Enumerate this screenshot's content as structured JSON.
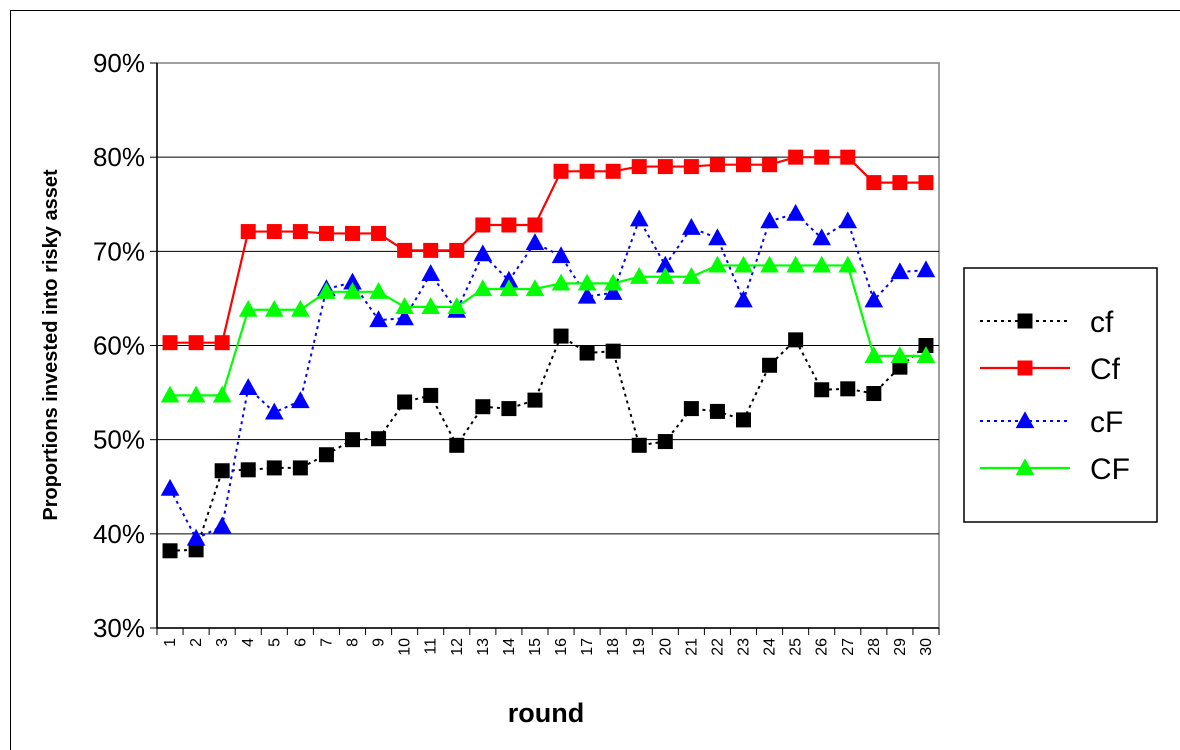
{
  "chart_data": {
    "type": "line",
    "title": "",
    "xlabel": "round",
    "ylabel": "Proportions invested into risky asset",
    "x": [
      1,
      2,
      3,
      4,
      5,
      6,
      7,
      8,
      9,
      10,
      11,
      12,
      13,
      14,
      15,
      16,
      17,
      18,
      19,
      20,
      21,
      22,
      23,
      24,
      25,
      26,
      27,
      28,
      29,
      30
    ],
    "y_ticks": [
      "30%",
      "40%",
      "50%",
      "60%",
      "70%",
      "80%",
      "90%"
    ],
    "ylim": [
      30,
      90
    ],
    "y_unit": "%",
    "grid": "horizontal",
    "legend_position": "right",
    "series": [
      {
        "name": "cf",
        "color": "#000000",
        "line_style": "dotted",
        "marker": "square",
        "values": [
          38.2,
          38.3,
          46.7,
          46.8,
          47.0,
          47.0,
          48.4,
          50.0,
          50.1,
          54.0,
          54.7,
          49.4,
          53.5,
          53.3,
          54.2,
          61.0,
          59.2,
          59.4,
          49.4,
          49.8,
          53.3,
          53.0,
          52.1,
          57.9,
          60.6,
          55.3,
          55.4,
          54.9,
          57.7,
          60.0
        ]
      },
      {
        "name": "Cf",
        "color": "#ff0000",
        "line_style": "solid",
        "marker": "square",
        "values": [
          60.3,
          60.3,
          60.3,
          72.1,
          72.1,
          72.1,
          71.9,
          71.9,
          71.9,
          70.1,
          70.1,
          70.1,
          72.8,
          72.8,
          72.8,
          78.5,
          78.5,
          78.5,
          79.0,
          79.0,
          79.0,
          79.2,
          79.2,
          79.2,
          80.0,
          80.0,
          80.0,
          77.3,
          77.3,
          77.3
        ]
      },
      {
        "name": "cF",
        "color": "#0000ff",
        "line_style": "dotted",
        "marker": "triangle",
        "values": [
          44.8,
          39.5,
          40.8,
          55.5,
          52.9,
          54.1,
          66.0,
          66.7,
          62.7,
          62.9,
          67.6,
          63.7,
          69.7,
          66.9,
          70.9,
          69.5,
          65.2,
          65.6,
          73.4,
          68.5,
          72.5,
          71.4,
          64.8,
          73.2,
          74.0,
          71.4,
          73.2,
          64.8,
          67.8,
          68.0
        ]
      },
      {
        "name": "CF",
        "color": "#00ff00",
        "line_style": "solid",
        "marker": "triangle",
        "values": [
          54.7,
          54.7,
          54.7,
          63.8,
          63.8,
          63.8,
          65.7,
          65.7,
          65.7,
          64.1,
          64.1,
          64.1,
          66.0,
          66.0,
          66.0,
          66.6,
          66.6,
          66.6,
          67.3,
          67.3,
          67.3,
          68.5,
          68.5,
          68.5,
          68.5,
          68.5,
          68.5,
          58.9,
          58.9,
          58.9
        ]
      }
    ]
  }
}
